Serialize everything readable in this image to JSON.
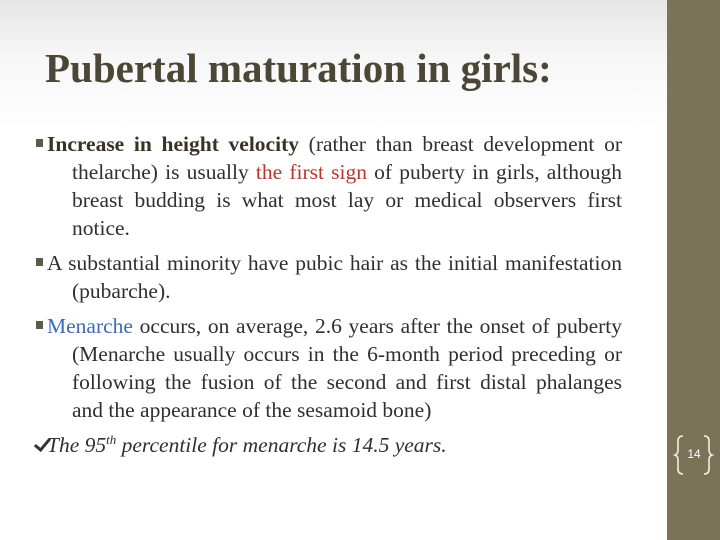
{
  "title": "Pubertal maturation in girls:",
  "bullets": [
    {
      "parts": [
        "Increase in height velocity",
        " (rather than breast development or thelarche) is usually ",
        "the first sign",
        " of puberty in girls, although breast budding is what most lay or medical observers first notice."
      ]
    },
    {
      "parts": [
        "A substantial minority have pubic hair as the initial manifestation (pubarche)."
      ]
    },
    {
      "parts": [
        "Menarche",
        " occurs, on average, 2.6 years after the onset of puberty (Menarche usually occurs in the 6-month period preceding or following the fusion of the second and first distal phalanges and the appearance of the sesamoid bone)"
      ]
    },
    {
      "parts": [
        "The 95",
        "th",
        " percentile for menarche is 14.5 years."
      ]
    }
  ],
  "page_number": "14"
}
